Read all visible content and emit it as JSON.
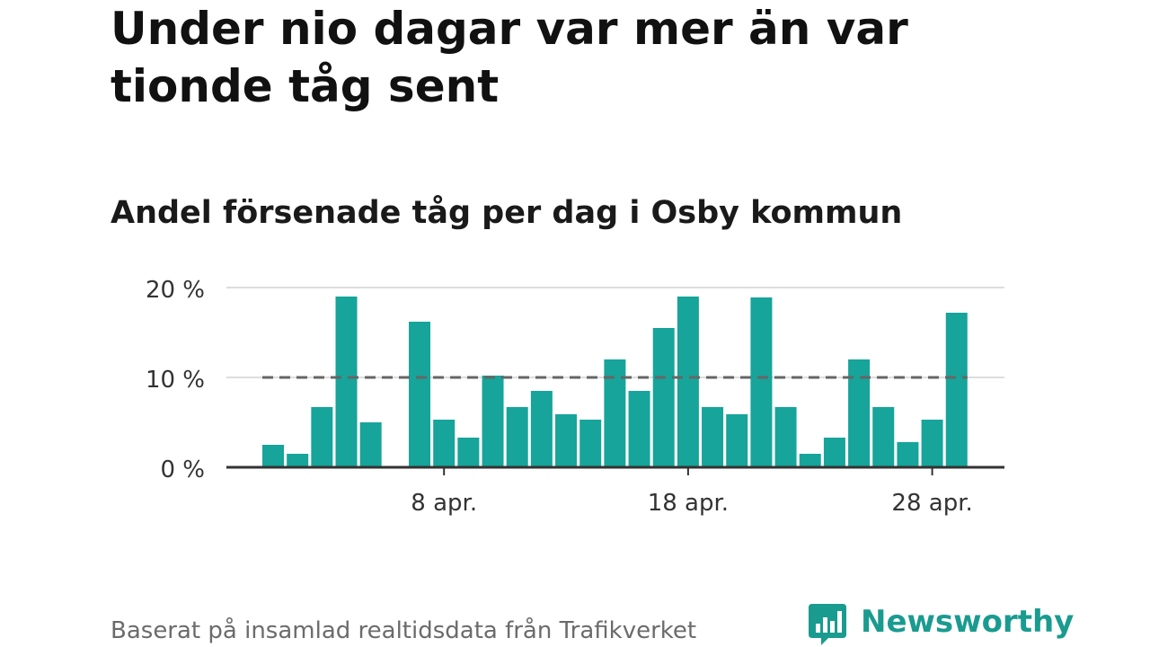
{
  "title": "Under nio dagar var mer än var tionde tåg sent",
  "subtitle": "Andel försenade tåg per dag i Osby kommun",
  "source": "Baserat på insamlad realtidsdata från Trafikverket",
  "brand": "Newsworthy",
  "colors": {
    "bar": "#17a49a",
    "reference_line": "#666666",
    "brand": "#1a9b8f"
  },
  "chart_data": {
    "type": "bar",
    "categories": [
      "1 apr.",
      "2 apr.",
      "3 apr.",
      "4 apr.",
      "5 apr.",
      "6 apr.",
      "7 apr.",
      "8 apr.",
      "9 apr.",
      "10 apr.",
      "11 apr.",
      "12 apr.",
      "13 apr.",
      "14 apr.",
      "15 apr.",
      "16 apr.",
      "17 apr.",
      "18 apr.",
      "19 apr.",
      "20 apr.",
      "21 apr.",
      "22 apr.",
      "23 apr.",
      "24 apr.",
      "25 apr.",
      "26 apr.",
      "27 apr.",
      "28 apr.",
      "29 apr."
    ],
    "values": [
      2.5,
      1.5,
      6.7,
      19.0,
      5.0,
      null,
      16.2,
      5.3,
      3.3,
      10.2,
      6.7,
      8.5,
      5.9,
      5.3,
      12.0,
      8.5,
      15.5,
      19.0,
      6.7,
      5.9,
      18.9,
      6.7,
      1.5,
      3.3,
      12.0,
      6.7,
      2.8,
      5.3,
      17.2
    ],
    "xticks": [
      {
        "category": "8 apr.",
        "label": "8 apr."
      },
      {
        "category": "18 apr.",
        "label": "18 apr."
      },
      {
        "category": "28 apr.",
        "label": "28 apr."
      }
    ],
    "yticks": [
      {
        "value": 0,
        "label": "0 %"
      },
      {
        "value": 10,
        "label": "10 %"
      },
      {
        "value": 20,
        "label": "20 %"
      }
    ],
    "ylim": [
      0,
      20
    ],
    "reference_line": {
      "value": 10,
      "style": "dashed"
    },
    "grid": true
  }
}
